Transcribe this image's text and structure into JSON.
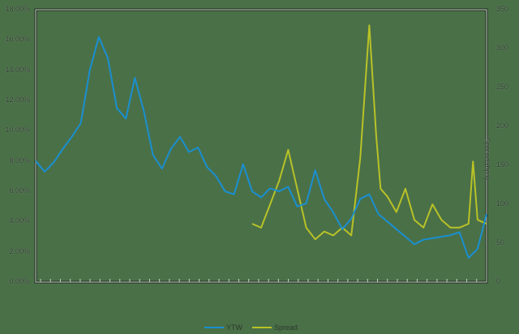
{
  "chart_data": {
    "type": "line",
    "title": "",
    "xlabel": "",
    "ylabel": "",
    "y2label": "Spread (bps)",
    "ylim": [
      0,
      18
    ],
    "y2lim": [
      0,
      350
    ],
    "grid": false,
    "legend_position": "bottom",
    "y_ticks": [
      "0.00%",
      "2.00%",
      "4.00%",
      "6.00%",
      "8.00%",
      "10.00%",
      "12.00%",
      "14.00%",
      "16.00%",
      "18.00%"
    ],
    "y2_ticks": [
      "0",
      "50",
      "100",
      "150",
      "200",
      "250",
      "300",
      "350"
    ],
    "x_tick_count": 46,
    "series": [
      {
        "name": "YTW",
        "axis": "left",
        "color": "#1a8fd0",
        "x": [
          0,
          0.02,
          0.04,
          0.06,
          0.08,
          0.1,
          0.12,
          0.14,
          0.16,
          0.18,
          0.2,
          0.22,
          0.24,
          0.26,
          0.28,
          0.3,
          0.32,
          0.34,
          0.36,
          0.38,
          0.4,
          0.42,
          0.44,
          0.46,
          0.48,
          0.5,
          0.52,
          0.54,
          0.56,
          0.58,
          0.6,
          0.62,
          0.64,
          0.66,
          0.68,
          0.7,
          0.72,
          0.74,
          0.76,
          0.78,
          0.8,
          0.82,
          0.84,
          0.86,
          0.88,
          0.9,
          0.92,
          0.94,
          0.96,
          0.98,
          1.0
        ],
        "values": [
          8.0,
          7.3,
          7.9,
          8.8,
          9.6,
          10.5,
          14.0,
          16.2,
          14.8,
          11.5,
          10.8,
          13.5,
          11.3,
          8.4,
          7.5,
          8.8,
          9.6,
          8.6,
          8.9,
          7.6,
          7.0,
          6.0,
          5.8,
          7.8,
          6.0,
          5.6,
          6.2,
          6.0,
          6.3,
          5.0,
          5.2,
          7.4,
          5.5,
          4.6,
          3.5,
          4.2,
          5.5,
          5.8,
          4.5,
          4.0,
          3.5,
          3.0,
          2.5,
          2.8,
          2.9,
          3.0,
          3.1,
          3.3,
          1.6,
          2.2,
          4.5
        ]
      },
      {
        "name": "Spread",
        "axis": "right",
        "color": "#b8c227",
        "x": [
          0.48,
          0.5,
          0.52,
          0.54,
          0.56,
          0.58,
          0.6,
          0.62,
          0.64,
          0.66,
          0.68,
          0.7,
          0.72,
          0.74,
          0.755,
          0.765,
          0.78,
          0.8,
          0.82,
          0.84,
          0.86,
          0.88,
          0.9,
          0.92,
          0.94,
          0.96,
          0.97,
          0.98,
          1.0
        ],
        "values": [
          75,
          70,
          100,
          130,
          170,
          120,
          70,
          55,
          65,
          60,
          70,
          60,
          160,
          330,
          190,
          120,
          110,
          90,
          120,
          80,
          70,
          100,
          80,
          70,
          70,
          75,
          155,
          80,
          75
        ]
      }
    ]
  },
  "legend": {
    "items": [
      {
        "label": "YTW",
        "color": "#1a8fd0"
      },
      {
        "label": "Spread",
        "color": "#b8c227"
      }
    ]
  }
}
